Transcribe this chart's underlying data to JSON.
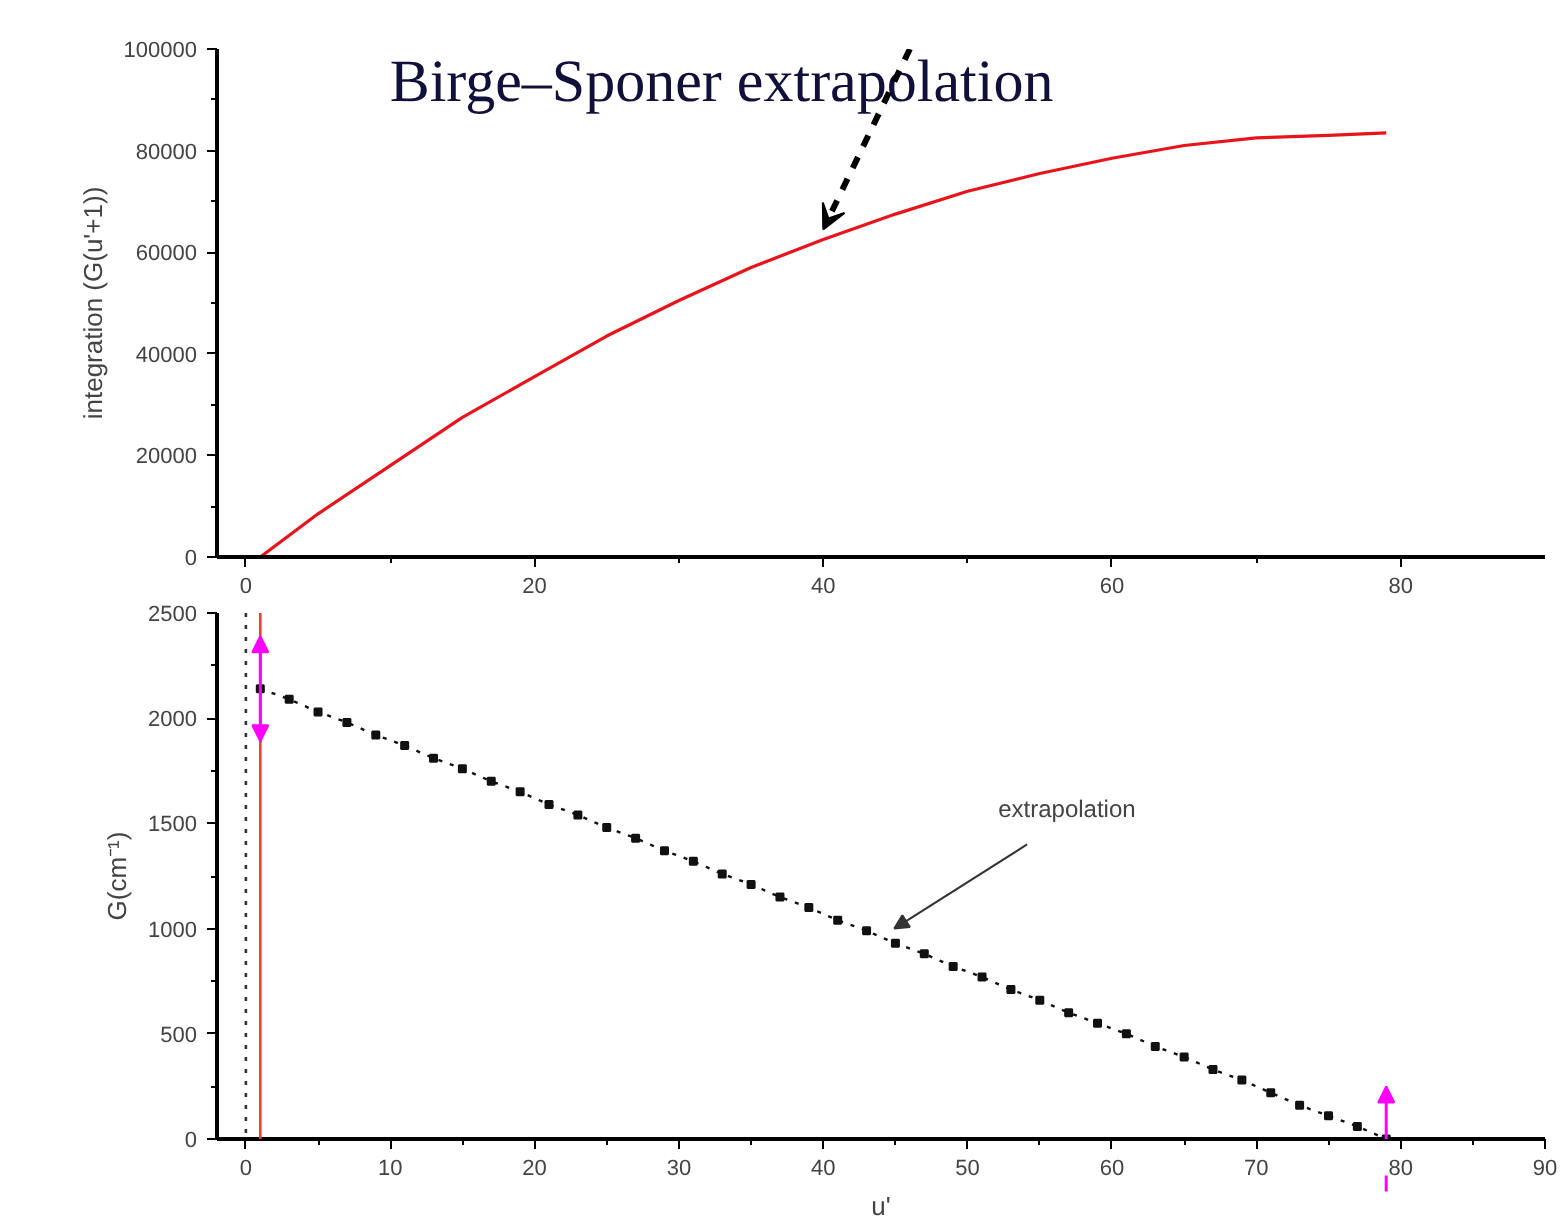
{
  "chart_data": [
    {
      "type": "line",
      "title": "Birge–Sponer extrapolation",
      "ylabel": "integration (G(u'+1))",
      "x": [
        1,
        5,
        10,
        15,
        20,
        25,
        30,
        35,
        40,
        45,
        50,
        55,
        60,
        65,
        70,
        75,
        79
      ],
      "series": [
        {
          "color": "#e8141c",
          "values": [
            0,
            8500,
            18000,
            27500,
            35500,
            43500,
            50500,
            57000,
            62500,
            67500,
            72000,
            75500,
            78500,
            81000,
            82500,
            83000,
            83500
          ]
        }
      ],
      "xlim": [
        -2,
        90
      ],
      "xticks": [
        0,
        20,
        40,
        60,
        80
      ],
      "ylim": [
        0,
        100000
      ],
      "yticks": [
        0,
        20000,
        40000,
        60000,
        80000,
        100000
      ],
      "grid": false,
      "marker": "none",
      "line_style": "solid"
    },
    {
      "type": "line",
      "xlabel": "u'",
      "ylabel": "G(cm⁻¹)",
      "x": [
        1,
        3,
        5,
        7,
        9,
        11,
        13,
        15,
        17,
        19,
        21,
        23,
        25,
        27,
        29,
        31,
        33,
        35,
        37,
        39,
        41,
        43,
        45,
        47,
        49,
        51,
        53,
        55,
        57,
        59,
        61,
        63,
        65,
        67,
        69,
        71,
        73,
        75,
        77,
        79
      ],
      "series": [
        {
          "color": "#111111",
          "values": [
            2140,
            2090,
            2030,
            1980,
            1920,
            1870,
            1810,
            1760,
            1700,
            1650,
            1590,
            1540,
            1480,
            1430,
            1370,
            1320,
            1260,
            1210,
            1150,
            1100,
            1040,
            990,
            930,
            880,
            820,
            770,
            710,
            660,
            600,
            550,
            500,
            440,
            390,
            330,
            280,
            220,
            160,
            110,
            60,
            0
          ]
        }
      ],
      "xlim": [
        -2,
        90
      ],
      "xticks": [
        0,
        10,
        20,
        30,
        40,
        50,
        60,
        70,
        80,
        90
      ],
      "ylim": [
        0,
        2500
      ],
      "yticks": [
        0,
        500,
        1000,
        1500,
        2000,
        2500
      ],
      "ref_lines": [
        {
          "axis": "x",
          "value": 1,
          "color": "#f03c3c",
          "line_style": "solid"
        },
        {
          "axis": "x",
          "value": 0,
          "color": "#333333",
          "line_style": "dotted"
        }
      ],
      "annotations": [
        "extrapolation"
      ],
      "grid": false,
      "marker": "square",
      "line_style": "dotted"
    }
  ]
}
